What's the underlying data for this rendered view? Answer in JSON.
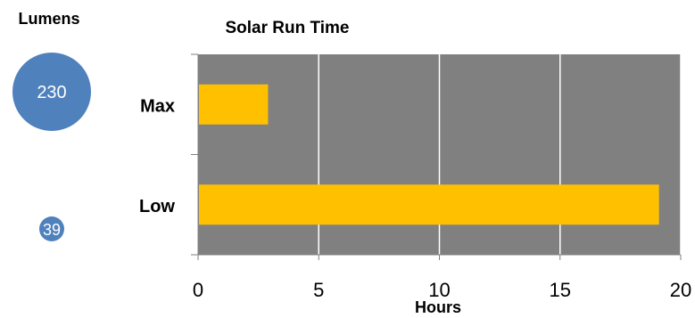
{
  "lumens": {
    "title": "Lumens",
    "bubbles": [
      {
        "label": "230",
        "value": 230
      },
      {
        "label": "39",
        "value": 39
      }
    ],
    "bubble_color": "#4f81bd"
  },
  "chart_data": {
    "type": "bar",
    "orientation": "horizontal",
    "title": "Solar Run Time",
    "xlabel": "Hours",
    "ylabel": "",
    "categories": [
      "Max",
      "Low"
    ],
    "values": [
      2.9,
      19.1
    ],
    "xlim": [
      0,
      20
    ],
    "x_ticks": [
      "0",
      "5",
      "10",
      "15",
      "20"
    ],
    "grid": true,
    "bar_color": "#ffc000",
    "plot_background": "#808080",
    "gridline_color": "#ffffff"
  }
}
